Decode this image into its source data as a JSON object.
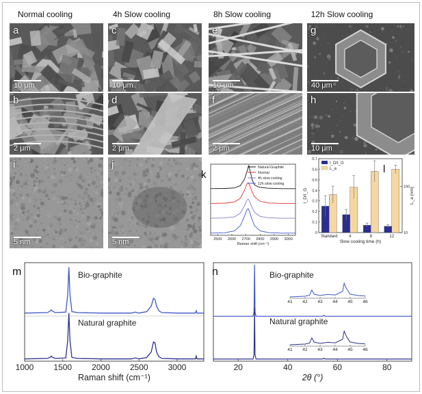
{
  "headers": [
    "Normal cooling",
    "4h Slow cooling",
    "8h Slow cooling",
    "12h Slow cooling"
  ],
  "panels": {
    "a": {
      "label": "a",
      "scale": "10 μm"
    },
    "b": {
      "label": "b",
      "scale": "2 μm"
    },
    "c": {
      "label": "c",
      "scale": "10 μm"
    },
    "d": {
      "label": "d",
      "scale": "2 μm"
    },
    "e": {
      "label": "e",
      "scale": "10 μm"
    },
    "f": {
      "label": "f",
      "scale": "2 μm"
    },
    "g": {
      "label": "g",
      "scale": "40 μm"
    },
    "h": {
      "label": "h",
      "scale": "10 μm"
    },
    "i": {
      "label": "i",
      "scale": "5 nm"
    },
    "j": {
      "label": "j",
      "scale": "5 nm"
    }
  },
  "colors": {
    "navy": "#2b2e8f",
    "bar_light": "#f7d7a0",
    "red": "#e0342c",
    "purple": "#8a7bc4",
    "blue": "#3b55c7"
  },
  "chart_data": [
    {
      "panel": "k",
      "type": "line",
      "xlabel": "Raman shift (cm⁻¹)",
      "xticks": [
        2500,
        2600,
        2700,
        2800,
        2900,
        3000
      ],
      "xlim": [
        2450,
        3050
      ],
      "series": [
        {
          "name": "Natural Graphite",
          "color": "#111111",
          "x": [
            2450,
            2550,
            2620,
            2660,
            2690,
            2710,
            2720,
            2730,
            2745,
            2760,
            2790,
            2850,
            2950,
            3050
          ],
          "y": [
            3.05,
            3.06,
            3.1,
            3.25,
            3.7,
            4.3,
            4.6,
            4.2,
            3.6,
            3.3,
            3.15,
            3.08,
            3.05,
            3.05
          ]
        },
        {
          "name": "Normal",
          "color": "#e0342c",
          "x": [
            2450,
            2550,
            2620,
            2660,
            2690,
            2705,
            2715,
            2725,
            2740,
            2760,
            2800,
            2860,
            2950,
            3050
          ],
          "y": [
            2.05,
            2.07,
            2.15,
            2.4,
            2.95,
            3.35,
            3.45,
            3.3,
            2.9,
            2.5,
            2.2,
            2.08,
            2.05,
            2.05
          ]
        },
        {
          "name": "4h slow cooling",
          "color": "#8a7bc4",
          "x": [
            2450,
            2550,
            2620,
            2660,
            2690,
            2705,
            2715,
            2725,
            2740,
            2760,
            2800,
            2860,
            2950,
            3050
          ],
          "y": [
            1.05,
            1.07,
            1.15,
            1.4,
            1.9,
            2.25,
            2.35,
            2.2,
            1.85,
            1.45,
            1.18,
            1.08,
            1.05,
            1.05
          ]
        },
        {
          "name": "12h slow cooling",
          "color": "#3b55c7",
          "x": [
            2450,
            2550,
            2620,
            2660,
            2690,
            2705,
            2715,
            2725,
            2740,
            2760,
            2800,
            2860,
            2950,
            3050
          ],
          "y": [
            0.05,
            0.07,
            0.2,
            0.55,
            1.2,
            1.6,
            1.7,
            1.5,
            1.05,
            0.55,
            0.2,
            0.08,
            0.05,
            0.05
          ]
        }
      ]
    },
    {
      "panel": "l",
      "type": "bar",
      "categories": [
        "Standard",
        "4",
        "8",
        "12"
      ],
      "xlabel": "Slow cooling time (h)",
      "ylabel_left": "I_D/I_G",
      "ylabel_right": "L_a (nm)",
      "ylim_left": [
        0,
        0.7
      ],
      "yticks_left": [
        0.0,
        0.1,
        0.2,
        0.3,
        0.4,
        0.5,
        0.6,
        0.7
      ],
      "yticks_right": [
        10,
        100
      ],
      "ylim_right_log": [
        10,
        400
      ],
      "series": [
        {
          "name": "I_D/I_G",
          "color": "#2b2e8f",
          "values": [
            0.25,
            0.17,
            0.07,
            0.06
          ],
          "errors": [
            0.1,
            0.05,
            0.02,
            0.015
          ]
        },
        {
          "name": "L_a",
          "color": "#f7d7a0",
          "values": [
            0.36,
            0.43,
            0.58,
            0.6
          ],
          "errors": [
            0.08,
            0.11,
            0.1,
            0.04
          ]
        }
      ]
    },
    {
      "panel": "m",
      "type": "line",
      "xlabel": "Raman shift (cm⁻¹)",
      "xticks": [
        1000,
        1500,
        2000,
        2500,
        3000
      ],
      "xlim": [
        1000,
        3350
      ],
      "series": [
        {
          "name": "Bio-graphite",
          "color": "#3b55c7",
          "x": [
            1000,
            1300,
            1340,
            1350,
            1360,
            1400,
            1540,
            1565,
            1580,
            1595,
            1620,
            1700,
            2000,
            2400,
            2450,
            2500,
            2600,
            2660,
            2690,
            2710,
            2730,
            2760,
            2800,
            3000,
            3240,
            3250,
            3260,
            3350
          ],
          "y": [
            1.0,
            1.01,
            1.05,
            1.07,
            1.05,
            1.01,
            1.02,
            1.4,
            2.0,
            1.4,
            1.03,
            1.01,
            1.0,
            1.0,
            1.02,
            1.0,
            1.03,
            1.15,
            1.32,
            1.3,
            1.15,
            1.05,
            1.01,
            1.0,
            1.0,
            1.05,
            1.0,
            1.0
          ]
        },
        {
          "name": "Natural graphite",
          "color": "#2b2e8f",
          "x": [
            1000,
            1300,
            1340,
            1350,
            1360,
            1400,
            1540,
            1565,
            1580,
            1595,
            1620,
            1700,
            2000,
            2400,
            2450,
            2500,
            2600,
            2660,
            2690,
            2710,
            2730,
            2760,
            2800,
            3000,
            3240,
            3250,
            3260,
            3350
          ],
          "y": [
            0.0,
            0.01,
            0.04,
            0.06,
            0.04,
            0.01,
            0.02,
            0.4,
            1.0,
            0.4,
            0.03,
            0.01,
            0.0,
            0.0,
            0.02,
            0.0,
            0.03,
            0.15,
            0.37,
            0.35,
            0.15,
            0.05,
            0.01,
            0.0,
            0.0,
            0.06,
            0.0,
            0.0
          ]
        }
      ]
    },
    {
      "panel": "n",
      "type": "line",
      "xlabel": "2θ (°)",
      "xticks": [
        20,
        40,
        60,
        80
      ],
      "xlim": [
        10,
        90
      ],
      "series": [
        {
          "name": "Bio-graphite",
          "color": "#3b55c7",
          "x": [
            10,
            26.0,
            26.4,
            26.6,
            26.8,
            27.2,
            54,
            54.6,
            55,
            90
          ],
          "y": [
            1.0,
            1.0,
            1.1,
            2.2,
            1.1,
            1.0,
            1.0,
            1.02,
            1.0,
            1.0
          ]
        },
        {
          "name": "Natural graphite",
          "color": "#2b2e8f",
          "x": [
            10,
            26.0,
            26.4,
            26.6,
            26.8,
            27.2,
            54,
            54.6,
            55,
            90
          ],
          "y": [
            0.0,
            0.0,
            0.1,
            1.2,
            0.1,
            0.0,
            0.0,
            0.02,
            0.0,
            0.0
          ]
        }
      ],
      "inset_xticks": [
        41,
        42,
        43,
        44,
        45,
        46
      ]
    }
  ],
  "labels": {
    "k": "k",
    "l": "l",
    "m": "m",
    "n": "n",
    "bio": "Bio-graphite",
    "natural": "Natural graphite",
    "k_xlabel": "Raman shift (cm⁻¹)",
    "l_xlabel": "Slow cooling time (h)",
    "m_xlabel": "Raman shift (cm⁻¹)",
    "n_xlabel": "2θ (°)",
    "l_legend_1": "I_D/I_G",
    "l_legend_2": "L_a",
    "l_ylabel": "I_D/I_G",
    "l_ylabel_right": "L_a (nm)"
  }
}
